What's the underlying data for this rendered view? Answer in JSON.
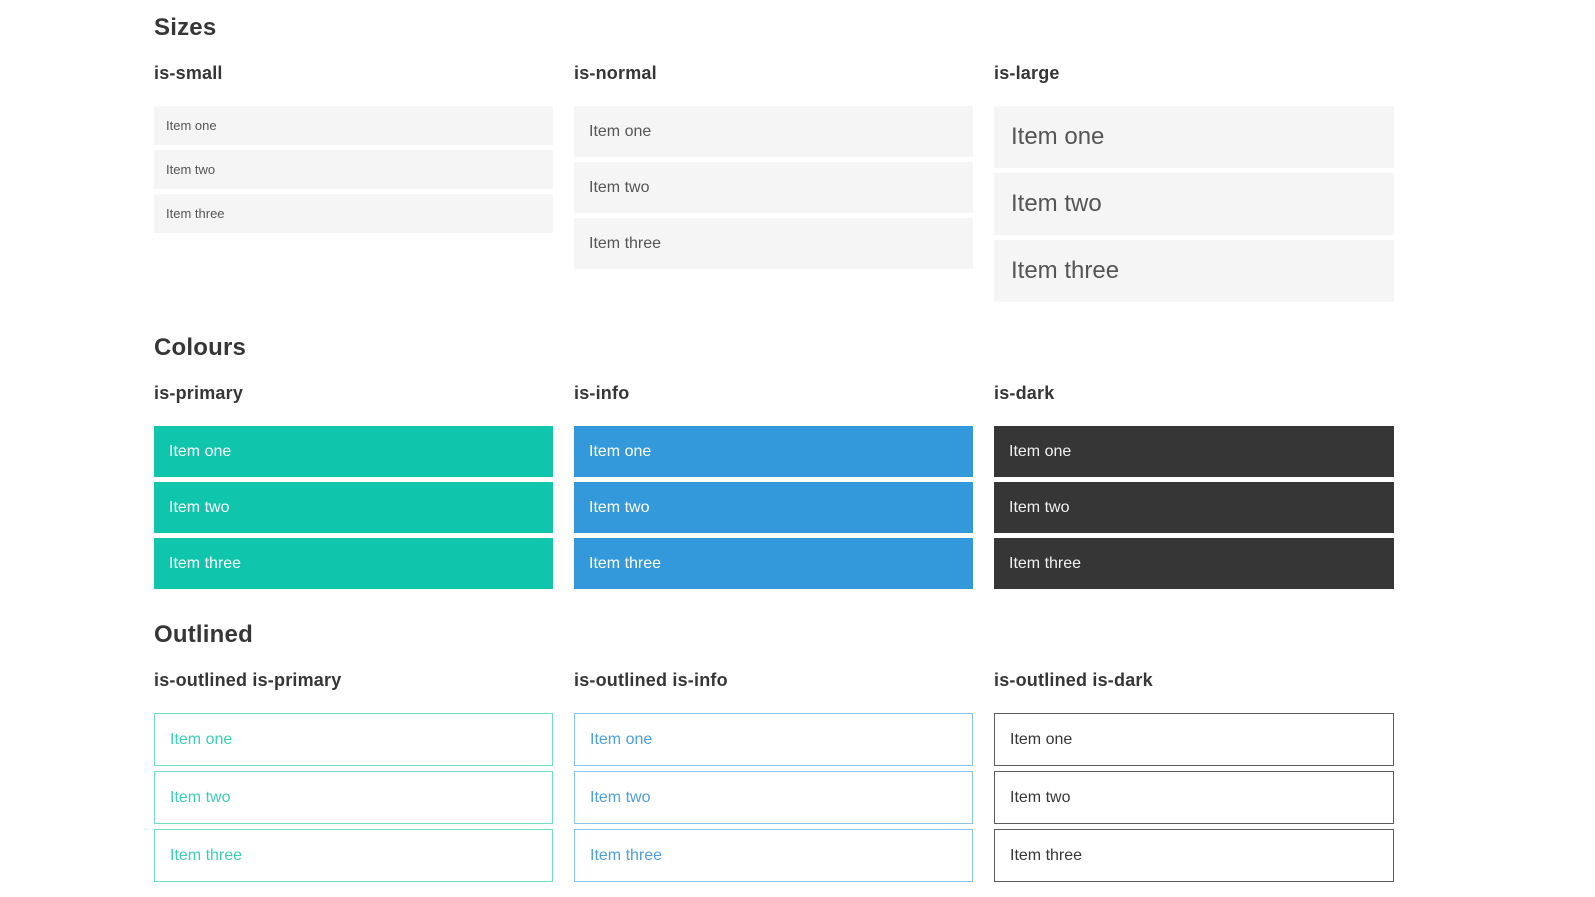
{
  "colors": {
    "heading_text": "#363636",
    "item_light_bg": "#f5f5f5",
    "item_text": "#555555",
    "primary": "#0fc6ac",
    "info": "#3499db",
    "dark": "#363636",
    "primary_outline_text": "#3bd0b6",
    "primary_outline_border": "#72dcc9",
    "info_outline_text": "#4d9fdd",
    "info_outline_border": "#8ac4ea",
    "dark_outline_text": "#363636",
    "dark_outline_border": "#5a5a5c"
  },
  "sections": [
    {
      "id": "sizes",
      "title": "Sizes",
      "groups": [
        {
          "heading": "is-small",
          "variant": "small",
          "items": [
            "Item one",
            "Item two",
            "Item three"
          ]
        },
        {
          "heading": "is-normal",
          "variant": "normal",
          "items": [
            "Item one",
            "Item two",
            "Item three"
          ]
        },
        {
          "heading": "is-large",
          "variant": "large",
          "items": [
            "Item one",
            "Item two",
            "Item three"
          ]
        }
      ]
    },
    {
      "id": "colours",
      "title": "Colours",
      "groups": [
        {
          "heading": "is-primary",
          "variant": "primary",
          "items": [
            "Item one",
            "Item two",
            "Item three"
          ]
        },
        {
          "heading": "is-info",
          "variant": "info",
          "items": [
            "Item one",
            "Item two",
            "Item three"
          ]
        },
        {
          "heading": "is-dark",
          "variant": "dark",
          "items": [
            "Item one",
            "Item two",
            "Item three"
          ]
        }
      ]
    },
    {
      "id": "outlined",
      "title": "Outlined",
      "groups": [
        {
          "heading": "is-outlined is-primary",
          "variant": "outlined-primary",
          "items": [
            "Item one",
            "Item two",
            "Item three"
          ]
        },
        {
          "heading": "is-outlined is-info",
          "variant": "outlined-info",
          "items": [
            "Item one",
            "Item two",
            "Item three"
          ]
        },
        {
          "heading": "is-outlined is-dark",
          "variant": "outlined-dark",
          "items": [
            "Item one",
            "Item two",
            "Item three"
          ]
        }
      ]
    }
  ]
}
